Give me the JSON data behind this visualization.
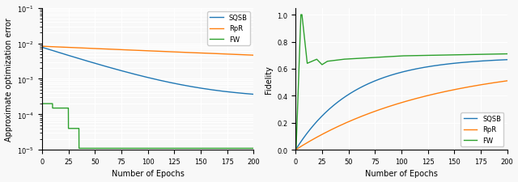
{
  "subplot1": {
    "ylabel": "Approximate optimization error",
    "xlabel": "Number of Epochs",
    "xlim": [
      0,
      200
    ],
    "ylim": [
      1e-05,
      0.1
    ],
    "xticks": [
      0,
      25,
      50,
      75,
      100,
      125,
      150,
      175,
      200
    ],
    "legend_labels": [
      "SQSB",
      "RpR",
      "FW"
    ],
    "legend_loc": "upper right"
  },
  "subplot2": {
    "ylabel": "Fidelity",
    "xlabel": "Number of Epochs",
    "xlim": [
      0,
      200
    ],
    "ylim": [
      0.0,
      1.05
    ],
    "xticks": [
      0,
      25,
      50,
      75,
      100,
      125,
      150,
      175,
      200
    ],
    "yticks": [
      0.0,
      0.2,
      0.4,
      0.6,
      0.8,
      1.0
    ],
    "legend_labels": [
      "SQSB",
      "RpR",
      "FW"
    ],
    "legend_loc": "lower right"
  },
  "colors": {
    "SQSB": "#1f77b4",
    "RpR": "#ff7f0e",
    "FW": "#2ca02c"
  },
  "background": "#f8f8f8",
  "grid_color": "#ffffff",
  "linewidth": 1.0,
  "fontsize_label": 7,
  "fontsize_tick": 6,
  "fontsize_legend": 6
}
